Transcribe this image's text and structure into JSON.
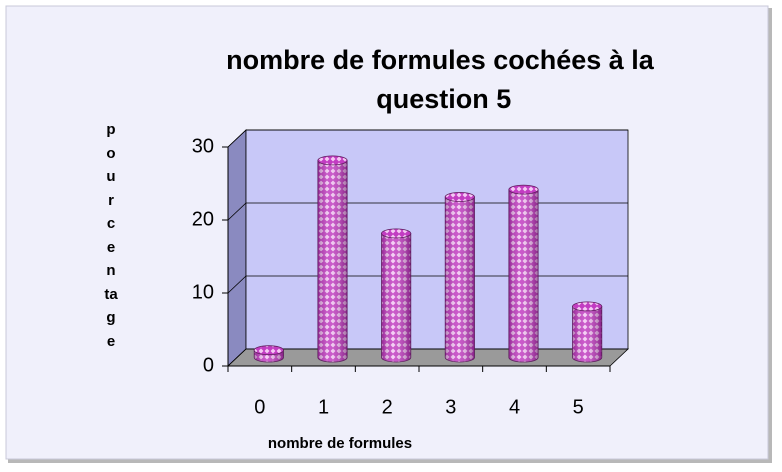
{
  "chart_data": {
    "type": "bar",
    "title": "nombre de formules cochées à la question 5",
    "x_label": "nombre de formules",
    "y_label": "pourcentage",
    "categories": [
      "0",
      "1",
      "2",
      "3",
      "4",
      "5"
    ],
    "values": [
      1,
      27,
      17,
      22,
      23,
      7
    ],
    "color": "#cc44cc",
    "ylim": [
      0,
      30
    ],
    "yticks": [
      0,
      10,
      20,
      30
    ],
    "grid": true
  }
}
